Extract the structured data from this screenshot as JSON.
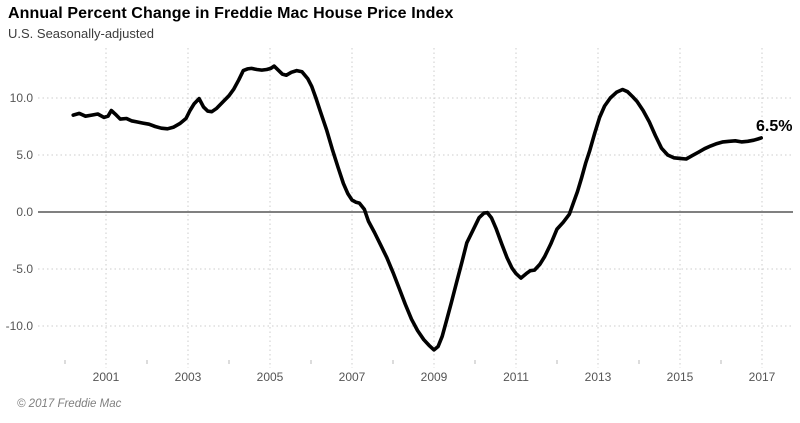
{
  "header": {
    "title": "Annual Percent Change in Freddie Mac House Price Index",
    "subtitle": "U.S. Seasonally-adjusted"
  },
  "footer": {
    "copyright": "© 2017 Freddie Mac"
  },
  "annotation": {
    "latest_value_label": "6.5%"
  },
  "colors": {
    "line": "#010101",
    "zero_line": "#808080",
    "grid": "#cccccc",
    "minor_tick": "#c4c4c4",
    "axis_text": "#555555",
    "title": "#000000",
    "subtitle": "#3c3c3c",
    "copyright": "#7f7f7f",
    "annotation_text": "#000000"
  },
  "chart_data": {
    "type": "line",
    "title": "Annual Percent Change in Freddie Mac House Price Index",
    "subtitle": "U.S. Seasonally-adjusted",
    "xlabel": "",
    "ylabel": "",
    "grid": "dotted",
    "legend": "none",
    "zero_line": true,
    "xlim": [
      2000,
      2017.75
    ],
    "ylim": [
      -13.7,
      14.4
    ],
    "y_ticks": [
      {
        "value": 10.0,
        "label": "10.0"
      },
      {
        "value": 5.0,
        "label": "5.0"
      },
      {
        "value": 0.0,
        "label": "0.0"
      },
      {
        "value": -5.0,
        "label": "-5.0"
      },
      {
        "value": -10.0,
        "label": "-10.0"
      }
    ],
    "x_ticks": [
      {
        "year": 2001,
        "label": "2001"
      },
      {
        "year": 2003,
        "label": "2003"
      },
      {
        "year": 2005,
        "label": "2005"
      },
      {
        "year": 2007,
        "label": "2007"
      },
      {
        "year": 2009,
        "label": "2009"
      },
      {
        "year": 2011,
        "label": "2011"
      },
      {
        "year": 2013,
        "label": "2013"
      },
      {
        "year": 2015,
        "label": "2015"
      },
      {
        "year": 2017,
        "label": "2017"
      }
    ],
    "x_minor_tick_years": [
      2000,
      2002,
      2004,
      2006,
      2008,
      2010,
      2012,
      2014,
      2016
    ],
    "series": [
      {
        "name": "U.S. HPI annual percent change (seasonally adjusted)",
        "end_label": "6.5%",
        "points": [
          [
            2000.2,
            8.5
          ],
          [
            2000.35,
            8.65
          ],
          [
            2000.5,
            8.4
          ],
          [
            2000.65,
            8.5
          ],
          [
            2000.8,
            8.6
          ],
          [
            2000.95,
            8.3
          ],
          [
            2001.05,
            8.4
          ],
          [
            2001.13,
            8.9
          ],
          [
            2001.25,
            8.5
          ],
          [
            2001.35,
            8.15
          ],
          [
            2001.5,
            8.2
          ],
          [
            2001.62,
            8.0
          ],
          [
            2001.75,
            7.9
          ],
          [
            2001.9,
            7.8
          ],
          [
            2002.05,
            7.7
          ],
          [
            2002.2,
            7.5
          ],
          [
            2002.35,
            7.35
          ],
          [
            2002.5,
            7.3
          ],
          [
            2002.65,
            7.45
          ],
          [
            2002.8,
            7.75
          ],
          [
            2002.95,
            8.2
          ],
          [
            2003.05,
            8.9
          ],
          [
            2003.15,
            9.5
          ],
          [
            2003.27,
            9.95
          ],
          [
            2003.38,
            9.2
          ],
          [
            2003.48,
            8.85
          ],
          [
            2003.58,
            8.8
          ],
          [
            2003.7,
            9.1
          ],
          [
            2003.85,
            9.65
          ],
          [
            2004.0,
            10.2
          ],
          [
            2004.12,
            10.8
          ],
          [
            2004.24,
            11.6
          ],
          [
            2004.35,
            12.4
          ],
          [
            2004.45,
            12.55
          ],
          [
            2004.55,
            12.6
          ],
          [
            2004.68,
            12.5
          ],
          [
            2004.8,
            12.45
          ],
          [
            2004.92,
            12.5
          ],
          [
            2005.02,
            12.6
          ],
          [
            2005.1,
            12.8
          ],
          [
            2005.2,
            12.45
          ],
          [
            2005.3,
            12.1
          ],
          [
            2005.4,
            12.0
          ],
          [
            2005.52,
            12.25
          ],
          [
            2005.65,
            12.4
          ],
          [
            2005.78,
            12.3
          ],
          [
            2005.92,
            11.7
          ],
          [
            2006.02,
            11.0
          ],
          [
            2006.12,
            10.0
          ],
          [
            2006.24,
            8.7
          ],
          [
            2006.38,
            7.2
          ],
          [
            2006.52,
            5.5
          ],
          [
            2006.66,
            3.9
          ],
          [
            2006.79,
            2.5
          ],
          [
            2006.9,
            1.6
          ],
          [
            2007.0,
            1.05
          ],
          [
            2007.1,
            0.85
          ],
          [
            2007.18,
            0.78
          ],
          [
            2007.3,
            0.25
          ],
          [
            2007.4,
            -0.8
          ],
          [
            2007.55,
            -1.8
          ],
          [
            2007.7,
            -2.9
          ],
          [
            2007.85,
            -4.0
          ],
          [
            2008.0,
            -5.3
          ],
          [
            2008.15,
            -6.7
          ],
          [
            2008.3,
            -8.1
          ],
          [
            2008.45,
            -9.4
          ],
          [
            2008.6,
            -10.4
          ],
          [
            2008.75,
            -11.2
          ],
          [
            2008.88,
            -11.7
          ],
          [
            2009.0,
            -12.1
          ],
          [
            2009.1,
            -11.8
          ],
          [
            2009.2,
            -10.9
          ],
          [
            2009.3,
            -9.6
          ],
          [
            2009.42,
            -8.0
          ],
          [
            2009.55,
            -6.2
          ],
          [
            2009.68,
            -4.4
          ],
          [
            2009.8,
            -2.7
          ],
          [
            2009.95,
            -1.6
          ],
          [
            2010.1,
            -0.5
          ],
          [
            2010.22,
            -0.1
          ],
          [
            2010.3,
            -0.05
          ],
          [
            2010.4,
            -0.5
          ],
          [
            2010.52,
            -1.5
          ],
          [
            2010.65,
            -2.8
          ],
          [
            2010.78,
            -4.0
          ],
          [
            2010.9,
            -4.9
          ],
          [
            2011.0,
            -5.4
          ],
          [
            2011.12,
            -5.8
          ],
          [
            2011.25,
            -5.4
          ],
          [
            2011.35,
            -5.15
          ],
          [
            2011.45,
            -5.1
          ],
          [
            2011.58,
            -4.6
          ],
          [
            2011.7,
            -3.9
          ],
          [
            2011.85,
            -2.8
          ],
          [
            2012.0,
            -1.5
          ],
          [
            2012.15,
            -0.9
          ],
          [
            2012.3,
            -0.2
          ],
          [
            2012.4,
            0.8
          ],
          [
            2012.5,
            1.8
          ],
          [
            2012.6,
            3.0
          ],
          [
            2012.7,
            4.3
          ],
          [
            2012.8,
            5.4
          ],
          [
            2012.92,
            6.9
          ],
          [
            2013.04,
            8.3
          ],
          [
            2013.16,
            9.3
          ],
          [
            2013.3,
            10.0
          ],
          [
            2013.45,
            10.5
          ],
          [
            2013.6,
            10.75
          ],
          [
            2013.72,
            10.55
          ],
          [
            2013.85,
            10.1
          ],
          [
            2013.95,
            9.7
          ],
          [
            2014.1,
            8.9
          ],
          [
            2014.25,
            7.9
          ],
          [
            2014.4,
            6.7
          ],
          [
            2014.55,
            5.6
          ],
          [
            2014.7,
            5.0
          ],
          [
            2014.85,
            4.75
          ],
          [
            2015.0,
            4.7
          ],
          [
            2015.15,
            4.65
          ],
          [
            2015.3,
            4.95
          ],
          [
            2015.45,
            5.25
          ],
          [
            2015.6,
            5.55
          ],
          [
            2015.75,
            5.8
          ],
          [
            2015.9,
            6.0
          ],
          [
            2016.05,
            6.15
          ],
          [
            2016.2,
            6.2
          ],
          [
            2016.35,
            6.25
          ],
          [
            2016.5,
            6.15
          ],
          [
            2016.65,
            6.2
          ],
          [
            2016.8,
            6.3
          ],
          [
            2016.9,
            6.4
          ],
          [
            2016.98,
            6.5
          ]
        ]
      }
    ]
  }
}
